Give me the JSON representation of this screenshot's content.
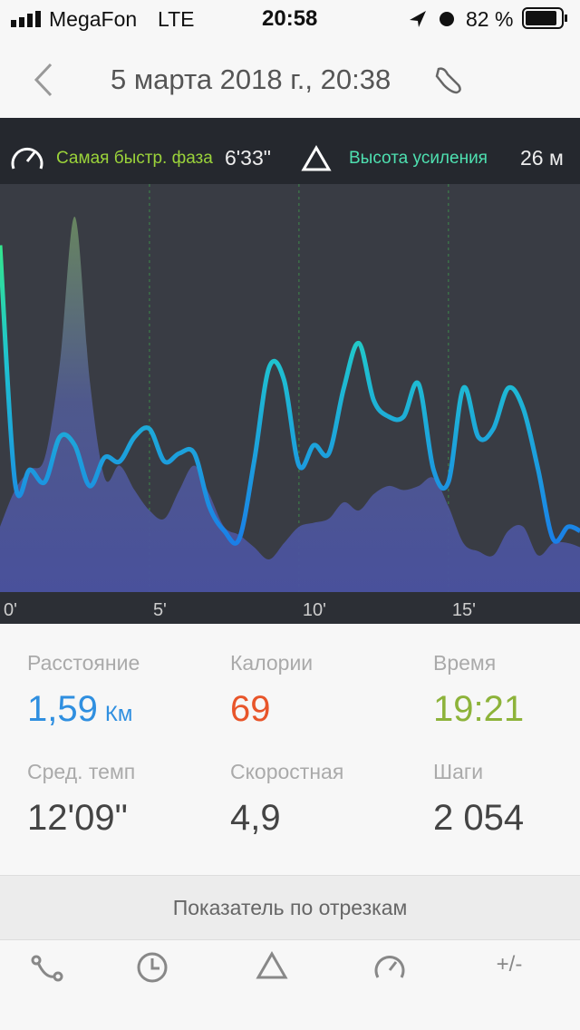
{
  "status": {
    "carrier": "MegaFon",
    "network": "LTE",
    "time": "20:58",
    "battery": "82 %"
  },
  "header": {
    "title": "5 марта 2018 г., 20:38"
  },
  "summary": {
    "fastest_label": "Самая быстр. фаза",
    "fastest_value": "6'33\"",
    "gain_label": "Высота усиления",
    "gain_value": "26 м"
  },
  "chart": {
    "type": "line",
    "xlim": [
      0,
      19.4
    ],
    "ylim": [
      0,
      100
    ],
    "xticks": [
      {
        "value": 0,
        "label": "0'"
      },
      {
        "value": 5,
        "label": "5'"
      },
      {
        "value": 10,
        "label": "10'"
      },
      {
        "value": 15,
        "label": "15'"
      }
    ],
    "x": [
      0,
      0.5,
      1,
      1.5,
      2,
      2.5,
      3,
      3.5,
      4,
      4.5,
      5,
      5.5,
      6,
      6.5,
      7,
      7.5,
      8,
      8.5,
      9,
      9.5,
      10,
      10.5,
      11,
      11.5,
      12,
      12.5,
      13,
      13.5,
      14,
      14.5,
      15,
      15.5,
      16,
      16.5,
      17,
      17.5,
      18,
      18.5,
      19,
      19.4
    ],
    "series": [
      {
        "kind": "area",
        "color": "#5a6ab0",
        "values": [
          16,
          25,
          30,
          33,
          56,
          92,
          52,
          28,
          31,
          25,
          20,
          18,
          25,
          31,
          24,
          16,
          14,
          11,
          8,
          12,
          16,
          17,
          18,
          22,
          20,
          24,
          26,
          25,
          26,
          28,
          21,
          12,
          10,
          9,
          15,
          16,
          9,
          12,
          12,
          11
        ]
      },
      {
        "kind": "line",
        "color": "#1fb6e0",
        "values": [
          85,
          27,
          30,
          27,
          38,
          36,
          26,
          33,
          32,
          38,
          40,
          32,
          34,
          34,
          21,
          15,
          13,
          32,
          55,
          52,
          31,
          36,
          34,
          50,
          61,
          47,
          43,
          43,
          51,
          30,
          27,
          50,
          38,
          40,
          50,
          45,
          30,
          13,
          16,
          15
        ]
      }
    ]
  },
  "stats": [
    {
      "label": "Расстояние",
      "value": "1,59",
      "unit": "Км",
      "color": "#2f8fe0"
    },
    {
      "label": "Калории",
      "value": "69",
      "color": "#e8552a"
    },
    {
      "label": "Время",
      "value": "19:21",
      "color": "#8db33a"
    },
    {
      "label": "Сред. темп",
      "value": "12'09\"",
      "color": "#444444"
    },
    {
      "label": "Скоростная",
      "value": "4,9",
      "color": "#444444"
    },
    {
      "label": "Шаги",
      "value": "2 054",
      "color": "#444444"
    }
  ],
  "segments": {
    "title": "Показатель по отрезкам",
    "icons": [
      "route",
      "time",
      "elevation",
      "speed",
      "+/-"
    ]
  }
}
